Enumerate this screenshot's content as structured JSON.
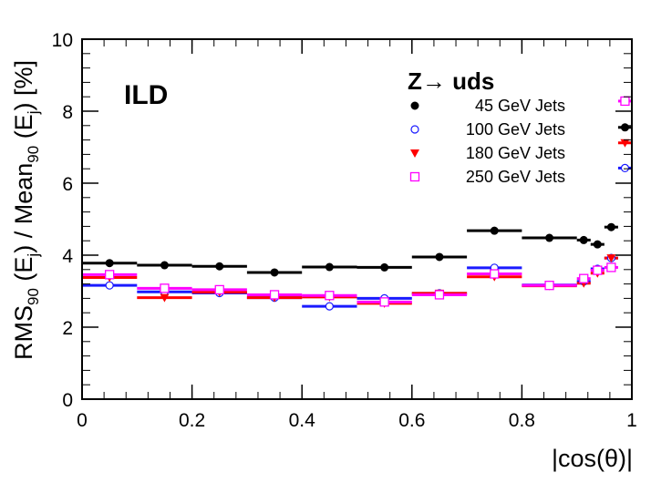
{
  "chart_data": {
    "type": "scatter",
    "x_label": "|cos(θ)|",
    "y_label": {
      "rms": "RMS",
      "sub90a": "90",
      "e1": " (E",
      "subJ1": "j",
      "mid": ") / Mean",
      "sub90b": "90",
      "e2": " (E",
      "subJ2": "j",
      "end": ") [%]"
    },
    "xlim": [
      0,
      1
    ],
    "ylim": [
      0,
      10
    ],
    "x_ticks": [
      "0",
      "0.2",
      "0.4",
      "0.6",
      "0.8",
      "1"
    ],
    "y_ticks": [
      "0",
      "2",
      "4",
      "6",
      "8",
      "10"
    ],
    "grid": false,
    "annotation": "ILD",
    "legend": {
      "header": "Z→  uds",
      "position": "top-right"
    },
    "series": [
      {
        "name": "45 GeV Jets",
        "marker": "filled-circle",
        "color": "#000000",
        "points": [
          {
            "x0": 0.0,
            "x1": 0.1,
            "y": 3.78
          },
          {
            "x0": 0.1,
            "x1": 0.2,
            "y": 3.72
          },
          {
            "x0": 0.2,
            "x1": 0.3,
            "y": 3.69
          },
          {
            "x0": 0.3,
            "x1": 0.4,
            "y": 3.52
          },
          {
            "x0": 0.4,
            "x1": 0.5,
            "y": 3.67
          },
          {
            "x0": 0.5,
            "x1": 0.6,
            "y": 3.66
          },
          {
            "x0": 0.6,
            "x1": 0.7,
            "y": 3.95
          },
          {
            "x0": 0.7,
            "x1": 0.8,
            "y": 4.68
          },
          {
            "x0": 0.8,
            "x1": 0.9,
            "y": 4.48
          },
          {
            "x0": 0.9,
            "x1": 0.925,
            "y": 4.42
          },
          {
            "x0": 0.925,
            "x1": 0.95,
            "y": 4.3
          },
          {
            "x0": 0.95,
            "x1": 0.975,
            "y": 4.78
          },
          {
            "x0": 0.975,
            "x1": 1.0,
            "y": 7.55
          }
        ]
      },
      {
        "name": "100 GeV Jets",
        "marker": "open-circle",
        "color": "#1a1aff",
        "points": [
          {
            "x0": 0.0,
            "x1": 0.1,
            "y": 3.16
          },
          {
            "x0": 0.1,
            "x1": 0.2,
            "y": 2.98
          },
          {
            "x0": 0.2,
            "x1": 0.3,
            "y": 2.95
          },
          {
            "x0": 0.3,
            "x1": 0.4,
            "y": 2.82
          },
          {
            "x0": 0.4,
            "x1": 0.5,
            "y": 2.58
          },
          {
            "x0": 0.5,
            "x1": 0.6,
            "y": 2.8
          },
          {
            "x0": 0.6,
            "x1": 0.7,
            "y": 2.94
          },
          {
            "x0": 0.7,
            "x1": 0.8,
            "y": 3.65
          },
          {
            "x0": 0.8,
            "x1": 0.9,
            "y": 3.17
          },
          {
            "x0": 0.9,
            "x1": 0.925,
            "y": 3.27
          },
          {
            "x0": 0.925,
            "x1": 0.95,
            "y": 3.62
          },
          {
            "x0": 0.95,
            "x1": 0.975,
            "y": 3.92
          },
          {
            "x0": 0.975,
            "x1": 1.0,
            "y": 6.42
          }
        ]
      },
      {
        "name": "180 GeV Jets",
        "marker": "filled-triangle-down",
        "color": "#ff0000",
        "points": [
          {
            "x0": 0.0,
            "x1": 0.1,
            "y": 3.38
          },
          {
            "x0": 0.1,
            "x1": 0.2,
            "y": 2.82
          },
          {
            "x0": 0.2,
            "x1": 0.3,
            "y": 2.97
          },
          {
            "x0": 0.3,
            "x1": 0.4,
            "y": 2.82
          },
          {
            "x0": 0.4,
            "x1": 0.5,
            "y": 2.84
          },
          {
            "x0": 0.5,
            "x1": 0.6,
            "y": 2.66
          },
          {
            "x0": 0.6,
            "x1": 0.7,
            "y": 2.94
          },
          {
            "x0": 0.7,
            "x1": 0.8,
            "y": 3.4
          },
          {
            "x0": 0.8,
            "x1": 0.9,
            "y": 3.15
          },
          {
            "x0": 0.9,
            "x1": 0.925,
            "y": 3.22
          },
          {
            "x0": 0.925,
            "x1": 0.95,
            "y": 3.5
          },
          {
            "x0": 0.95,
            "x1": 0.975,
            "y": 3.92
          },
          {
            "x0": 0.975,
            "x1": 1.0,
            "y": 7.12
          }
        ]
      },
      {
        "name": "250 GeV Jets",
        "marker": "open-square",
        "color": "#ff00ff",
        "points": [
          {
            "x0": 0.0,
            "x1": 0.1,
            "y": 3.46
          },
          {
            "x0": 0.1,
            "x1": 0.2,
            "y": 3.08
          },
          {
            "x0": 0.2,
            "x1": 0.3,
            "y": 3.04
          },
          {
            "x0": 0.3,
            "x1": 0.4,
            "y": 2.9
          },
          {
            "x0": 0.4,
            "x1": 0.5,
            "y": 2.88
          },
          {
            "x0": 0.5,
            "x1": 0.6,
            "y": 2.7
          },
          {
            "x0": 0.6,
            "x1": 0.7,
            "y": 2.9
          },
          {
            "x0": 0.7,
            "x1": 0.8,
            "y": 3.48
          },
          {
            "x0": 0.8,
            "x1": 0.9,
            "y": 3.16
          },
          {
            "x0": 0.9,
            "x1": 0.925,
            "y": 3.35
          },
          {
            "x0": 0.925,
            "x1": 0.95,
            "y": 3.58
          },
          {
            "x0": 0.95,
            "x1": 0.975,
            "y": 3.66
          },
          {
            "x0": 0.975,
            "x1": 1.0,
            "y": 8.28
          }
        ]
      }
    ]
  }
}
